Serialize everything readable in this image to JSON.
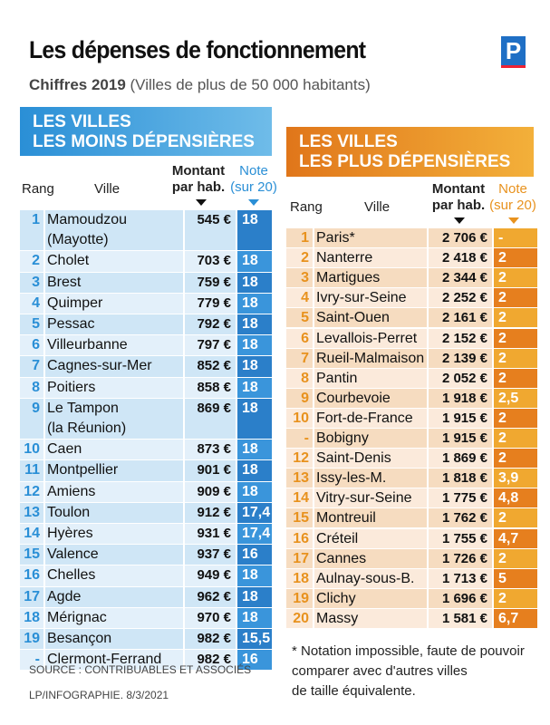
{
  "title": "Les dépenses de fonctionnement",
  "subtitle_bold": "Chiffres 2019",
  "subtitle_rest": "(Villes de plus de 50 000 habitants)",
  "logo": "P",
  "colors": {
    "blue": "#2a8fd6",
    "blue_dark": "#2b7fc9",
    "orange": "#e8921e",
    "orange_dark": "#e0761a"
  },
  "left": {
    "heading_1": "LES VILLES",
    "heading_2": "LES MOINS DÉPENSIÈRES",
    "col_rang": "Rang",
    "col_ville": "Ville",
    "col_montant_1": "Montant",
    "col_montant_2": "par hab.",
    "col_note_1": "Note",
    "col_note_2": "(sur 20)",
    "rows": [
      {
        "rank": "1",
        "city": [
          "Mamoudzou",
          "(Mayotte)"
        ],
        "amount": "545 €",
        "note": "18"
      },
      {
        "rank": "2",
        "city": [
          "Cholet"
        ],
        "amount": "703 €",
        "note": "18"
      },
      {
        "rank": "3",
        "city": [
          "Brest"
        ],
        "amount": "759 €",
        "note": "18"
      },
      {
        "rank": "4",
        "city": [
          "Quimper"
        ],
        "amount": "779 €",
        "note": "18"
      },
      {
        "rank": "5",
        "city": [
          "Pessac"
        ],
        "amount": "792 €",
        "note": "18"
      },
      {
        "rank": "6",
        "city": [
          "Villeurbanne"
        ],
        "amount": "797 €",
        "note": "18"
      },
      {
        "rank": "7",
        "city": [
          "Cagnes-sur-Mer"
        ],
        "amount": "852 €",
        "note": "18"
      },
      {
        "rank": "8",
        "city": [
          "Poitiers"
        ],
        "amount": "858 €",
        "note": "18"
      },
      {
        "rank": "9",
        "city": [
          "Le Tampon",
          "(la Réunion)"
        ],
        "amount": "869 €",
        "note": "18"
      },
      {
        "rank": "10",
        "city": [
          "Caen"
        ],
        "amount": "873 €",
        "note": "18"
      },
      {
        "rank": "11",
        "city": [
          "Montpellier"
        ],
        "amount": "901 €",
        "note": "18"
      },
      {
        "rank": "12",
        "city": [
          "Amiens"
        ],
        "amount": "909 €",
        "note": "18"
      },
      {
        "rank": "13",
        "city": [
          "Toulon"
        ],
        "amount": "912 €",
        "note": "17,4"
      },
      {
        "rank": "14",
        "city": [
          "Hyères"
        ],
        "amount": "931 €",
        "note": "17,4"
      },
      {
        "rank": "15",
        "city": [
          "Valence"
        ],
        "amount": "937 €",
        "note": "16"
      },
      {
        "rank": "16",
        "city": [
          "Chelles"
        ],
        "amount": "949 €",
        "note": "18"
      },
      {
        "rank": "17",
        "city": [
          "Agde"
        ],
        "amount": "962 €",
        "note": "18"
      },
      {
        "rank": "18",
        "city": [
          "Mérignac"
        ],
        "amount": "970 €",
        "note": "18"
      },
      {
        "rank": "19",
        "city": [
          "Besançon"
        ],
        "amount": "982 €",
        "note": "15,5"
      },
      {
        "rank": "-",
        "city": [
          "Clermont-Ferrand"
        ],
        "amount": "982 €",
        "note": "16"
      }
    ]
  },
  "right": {
    "heading_1": "LES VILLES",
    "heading_2": "LES PLUS DÉPENSIÈRES",
    "col_rang": "Rang",
    "col_ville": "Ville",
    "col_montant_1": "Montant",
    "col_montant_2": "par hab.",
    "col_note_1": "Note",
    "col_note_2": "(sur 20)",
    "rows": [
      {
        "rank": "1",
        "city": [
          "Paris*"
        ],
        "amount": "2 706 €",
        "note": "-"
      },
      {
        "rank": "2",
        "city": [
          "Nanterre"
        ],
        "amount": "2 418 €",
        "note": "2"
      },
      {
        "rank": "3",
        "city": [
          "Martigues"
        ],
        "amount": "2 344 €",
        "note": "2"
      },
      {
        "rank": "4",
        "city": [
          "Ivry-sur-Seine"
        ],
        "amount": "2 252 €",
        "note": "2"
      },
      {
        "rank": "5",
        "city": [
          "Saint-Ouen"
        ],
        "amount": "2 161 €",
        "note": "2"
      },
      {
        "rank": "6",
        "city": [
          "Levallois-Perret"
        ],
        "amount": "2 152 €",
        "note": "2"
      },
      {
        "rank": "7",
        "city": [
          "Rueil-Malmaison"
        ],
        "amount": "2 139 €",
        "note": "2"
      },
      {
        "rank": "8",
        "city": [
          "Pantin"
        ],
        "amount": "2 052 €",
        "note": "2"
      },
      {
        "rank": "9",
        "city": [
          "Courbevoie"
        ],
        "amount": "1 918 €",
        "note": "2,5"
      },
      {
        "rank": "10",
        "city": [
          "Fort-de-France"
        ],
        "amount": "1 915 €",
        "note": "2"
      },
      {
        "rank": "-",
        "city": [
          "Bobigny"
        ],
        "amount": "1 915 €",
        "note": "2"
      },
      {
        "rank": "12",
        "city": [
          "Saint-Denis"
        ],
        "amount": "1 869 €",
        "note": "2"
      },
      {
        "rank": "13",
        "city": [
          "Issy-les-M."
        ],
        "amount": "1 818 €",
        "note": "3,9"
      },
      {
        "rank": "14",
        "city": [
          "Vitry-sur-Seine"
        ],
        "amount": "1 775 €",
        "note": "4,8"
      },
      {
        "rank": "15",
        "city": [
          "Montreuil"
        ],
        "amount": "1 762 €",
        "note": "2"
      },
      {
        "rank": "16",
        "city": [
          "Créteil"
        ],
        "amount": "1 755 €",
        "note": "4,7"
      },
      {
        "rank": "17",
        "city": [
          "Cannes"
        ],
        "amount": "1 726 €",
        "note": "2"
      },
      {
        "rank": "18",
        "city": [
          "Aulnay-sous-B."
        ],
        "amount": "1 713 €",
        "note": "5"
      },
      {
        "rank": "19",
        "city": [
          "Clichy"
        ],
        "amount": "1 696 €",
        "note": "2"
      },
      {
        "rank": "20",
        "city": [
          "Massy"
        ],
        "amount": "1 581 €",
        "note": "6,7"
      }
    ]
  },
  "footnote": [
    "* Notation impossible, faute de pouvoir",
    "comparer avec d'autres villes",
    "de taille équivalente."
  ],
  "source": "SOURCE : CONTRIBUABLES ET ASSOCIÉS",
  "credit": "LP/INFOGRAPHIE. 8/3/2021"
}
